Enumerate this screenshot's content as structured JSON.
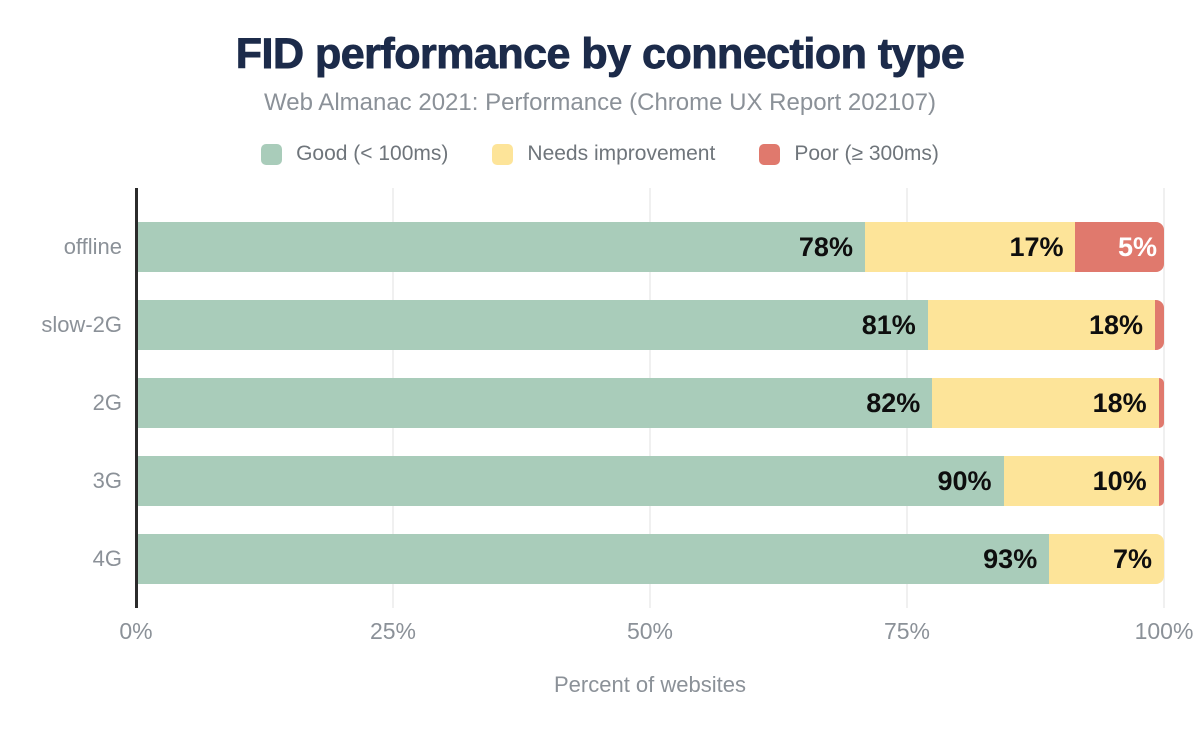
{
  "page": {
    "title": "FID performance by connection type",
    "subtitle": "Web Almanac 2021: Performance (Chrome UX Report 202107)"
  },
  "legend": {
    "items": [
      {
        "label": "Good (< 100ms)",
        "color": "#a9ccba"
      },
      {
        "label": "Needs improvement",
        "color": "#fde499"
      },
      {
        "label": "Poor (≥ 300ms)",
        "color": "#e0796d"
      }
    ]
  },
  "colors": {
    "title_text": "#1c2b4a",
    "muted_text": "#8b9198",
    "legend_text": "#6f757b",
    "bar_label_dark": "#0e0e0e",
    "bar_label_light": "#ffffff",
    "axis_line": "#2b2b2b",
    "gridline": "#f0f0f0",
    "good": "#a9ccba",
    "needs_improvement": "#fde499",
    "poor": "#e0796d"
  },
  "chart_data": {
    "type": "bar",
    "orientation": "horizontal",
    "stacked": true,
    "title": "FID performance by connection type",
    "subtitle": "Web Almanac 2021: Performance (Chrome UX Report 202107)",
    "xlabel": "Percent of websites",
    "ylabel": "",
    "xlim": [
      0,
      100
    ],
    "x_ticks": [
      0,
      25,
      50,
      75,
      100
    ],
    "x_tick_labels": [
      "0%",
      "25%",
      "50%",
      "75%",
      "100%"
    ],
    "grid": "vertical",
    "legend_position": "top",
    "categories": [
      "offline",
      "slow-2G",
      "2G",
      "3G",
      "4G"
    ],
    "series": [
      {
        "name": "Good (< 100ms)",
        "key": "good",
        "color": "#a9ccba",
        "values": [
          78,
          81,
          82,
          90,
          93
        ]
      },
      {
        "name": "Needs improvement",
        "key": "needs-improvement",
        "color": "#fde499",
        "values": [
          17,
          18,
          18,
          10,
          7
        ]
      },
      {
        "name": "Poor (≥ 300ms)",
        "key": "poor",
        "color": "#e0796d",
        "values": [
          5,
          1,
          0.6,
          0.6,
          0
        ]
      }
    ],
    "bar_labels": [
      [
        "78%",
        "17%",
        "5%"
      ],
      [
        "81%",
        "18%",
        ""
      ],
      [
        "82%",
        "18%",
        ""
      ],
      [
        "90%",
        "10%",
        ""
      ],
      [
        "93%",
        "7%",
        ""
      ]
    ]
  }
}
